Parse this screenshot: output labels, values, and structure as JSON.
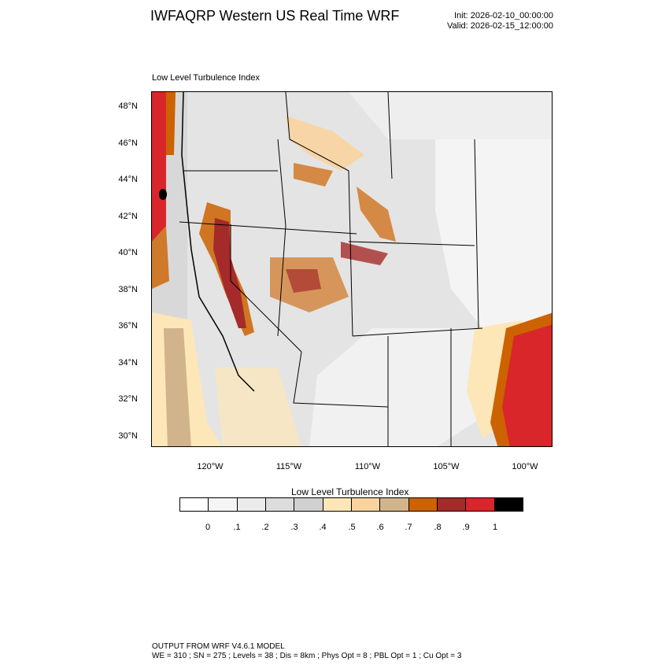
{
  "header": {
    "title": "IWFAQRP Western US Real Time WRF",
    "init": "Init: 2026-02-10_00:00:00",
    "valid": "Valid: 2026-02-15_12:00:00"
  },
  "plot": {
    "title": "Low Level Turbulence Index",
    "lat_labels": [
      "48°N",
      "46°N",
      "44°N",
      "42°N",
      "40°N",
      "38°N",
      "36°N",
      "34°N",
      "32°N",
      "30°N"
    ],
    "lon_labels": [
      "120°W",
      "115°W",
      "110°W",
      "105°W",
      "100°W"
    ]
  },
  "colorbar": {
    "title": "Low Level Turbulence Index",
    "labels": [
      "0",
      ".1",
      ".2",
      ".3",
      ".4",
      ".5",
      ".6",
      ".7",
      ".8",
      ".9",
      "1"
    ],
    "colors": [
      "#ffffff",
      "#f5f5f5",
      "#ebebeb",
      "#dcdcdc",
      "#d0d0d0",
      "#fde7b8",
      "#f8d39e",
      "#d2b48c",
      "#cd6200",
      "#a52a2a",
      "#d8262a",
      "#000000"
    ]
  },
  "footer": {
    "line1": "OUTPUT FROM WRF V4.6.1 MODEL",
    "line2": "WE = 310 ; SN = 275 ; Levels = 38 ; Dis = 8km ; Phys Opt = 8 ; PBL Opt = 1 ; Cu Opt = 3"
  }
}
